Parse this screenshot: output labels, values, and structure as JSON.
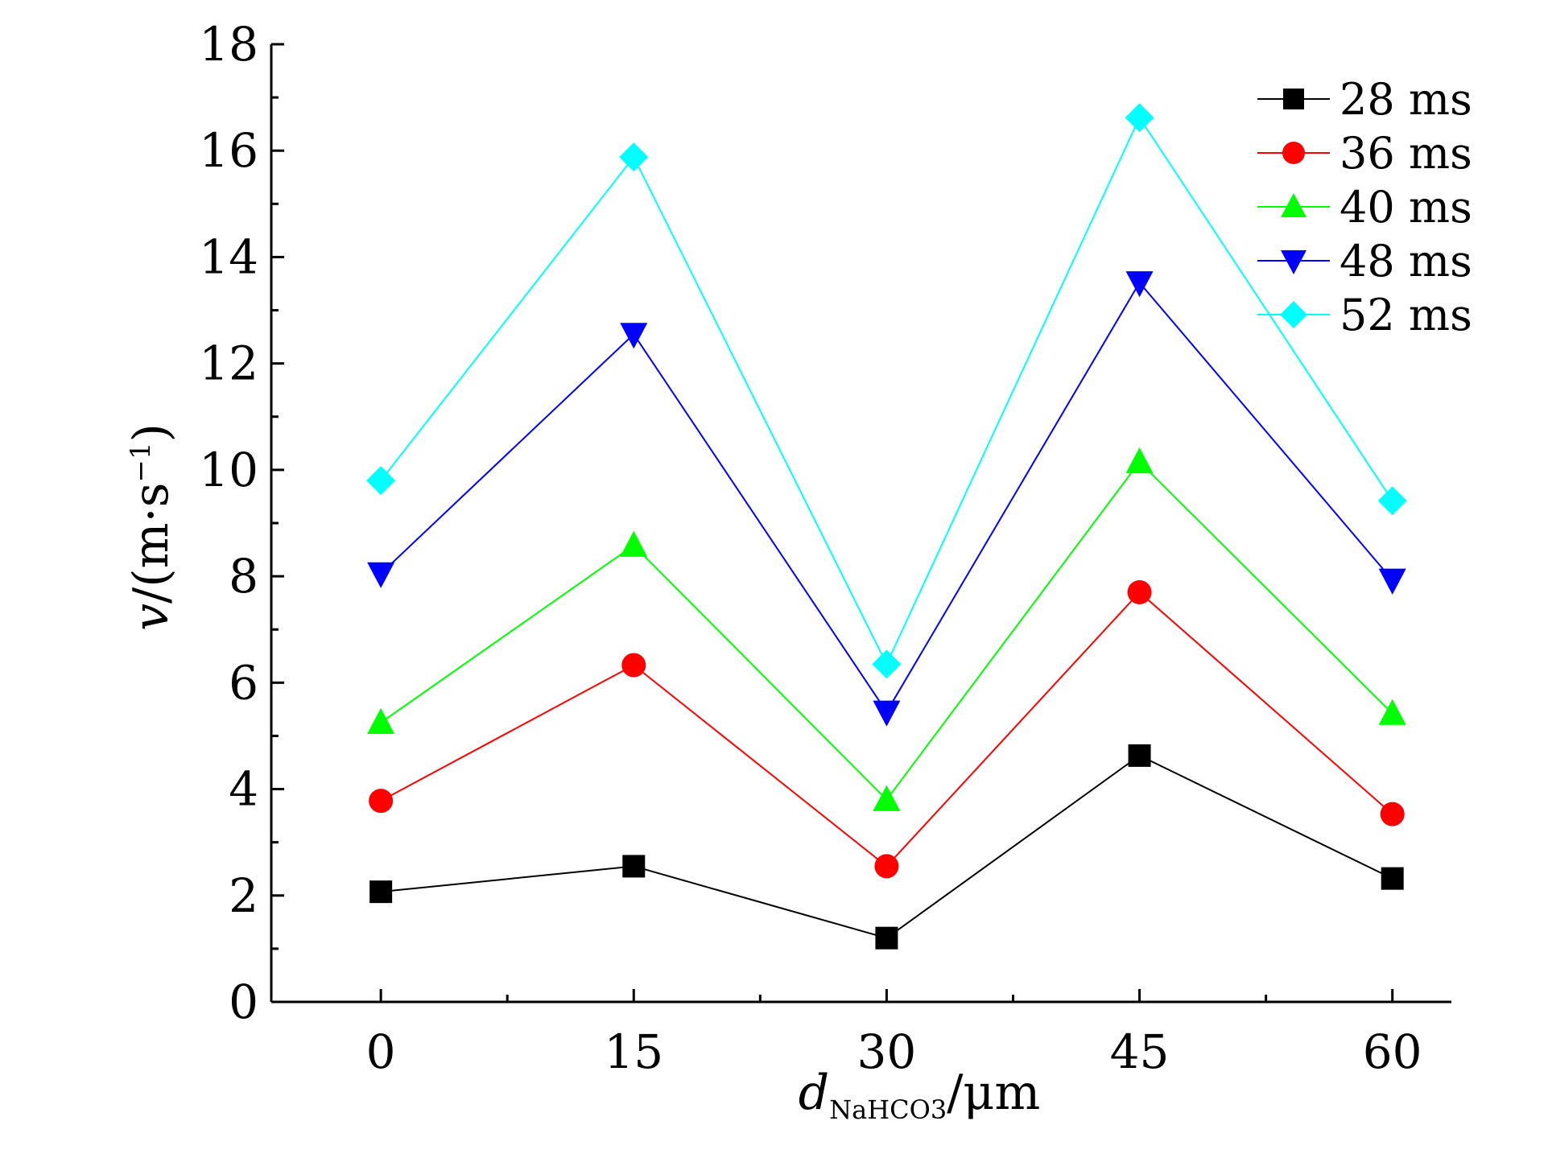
{
  "chart_data": {
    "type": "line",
    "title": "",
    "xlabel": {
      "main": "d",
      "sub": "NaHCO3",
      "unit": "/μm"
    },
    "ylabel": {
      "main": "v",
      "unit": "/(m·s",
      "sup": "−1",
      "close": ")"
    },
    "xlim": [
      -6.5,
      63.5
    ],
    "ylim": [
      0,
      18
    ],
    "xticks": [
      0,
      15,
      30,
      45,
      60
    ],
    "yticks": [
      0,
      2,
      4,
      6,
      8,
      10,
      12,
      14,
      16,
      18
    ],
    "grid": false,
    "legend_position": "top-right",
    "x": [
      0,
      15,
      30,
      45,
      60
    ],
    "series": [
      {
        "name": "28 ms",
        "color": "#000000",
        "marker": "square",
        "values": [
          2.07,
          2.55,
          1.2,
          4.63,
          2.32
        ]
      },
      {
        "name": "36 ms",
        "color": "#ff0000",
        "marker": "circle",
        "values": [
          3.78,
          6.33,
          2.55,
          7.7,
          3.53
        ]
      },
      {
        "name": "40 ms",
        "color": "#00ff00",
        "marker": "triangle-up",
        "values": [
          5.25,
          8.58,
          3.8,
          10.15,
          5.42
        ]
      },
      {
        "name": "48 ms",
        "color": "#0000ff",
        "marker": "triangle-down",
        "values": [
          8.05,
          12.55,
          5.45,
          13.52,
          7.93
        ]
      },
      {
        "name": "52 ms",
        "color": "#00ffff",
        "marker": "diamond",
        "values": [
          9.8,
          15.88,
          6.35,
          16.62,
          9.42
        ]
      }
    ]
  }
}
